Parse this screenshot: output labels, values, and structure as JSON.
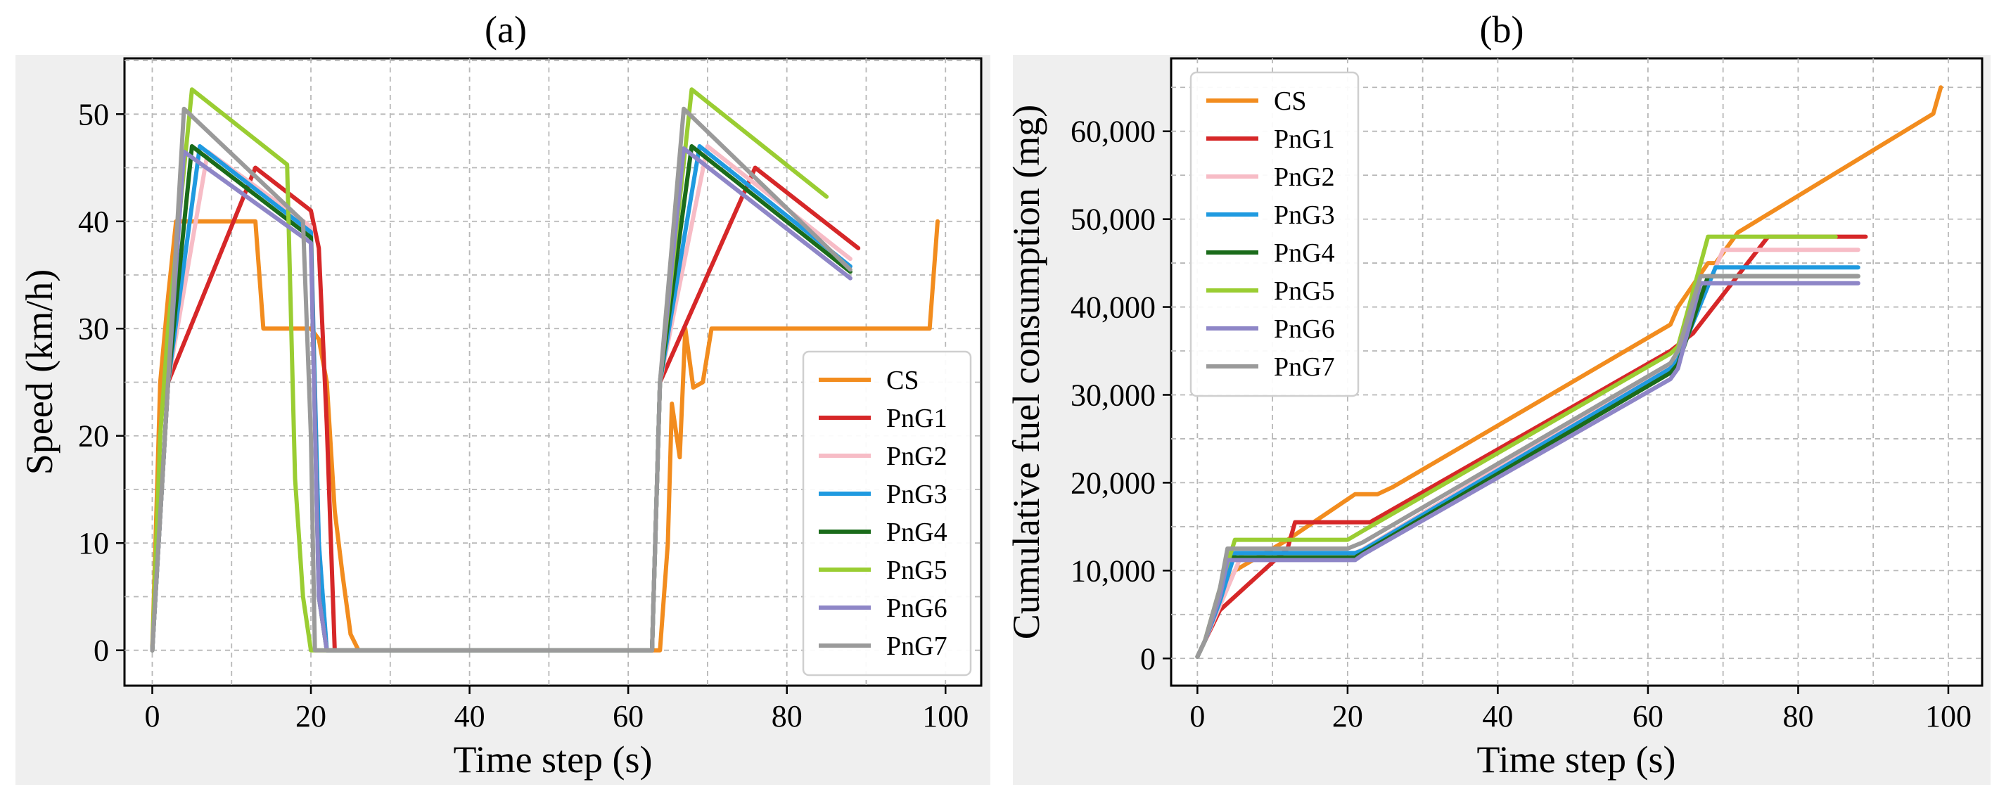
{
  "chart_data": [
    {
      "type": "line",
      "title": "(a)",
      "xlabel": "Time step (s)",
      "ylabel": "Speed (km/h)",
      "xlim": [
        -3.5,
        104.5
      ],
      "ylim": [
        -3.3,
        55.2
      ],
      "xticks": [
        0,
        20,
        40,
        60,
        80,
        100
      ],
      "xtick_labels": [
        "0",
        "20",
        "40",
        "60",
        "80",
        "100"
      ],
      "yticks": [
        0,
        10,
        20,
        30,
        40,
        50
      ],
      "ytick_labels": [
        "0",
        "10",
        "20",
        "30",
        "40",
        "50"
      ],
      "grid": true,
      "legend_position": "lower-right",
      "series": [
        {
          "name": "CS",
          "color": "#f28c1e",
          "points": [
            [
              0,
              0
            ],
            [
              1,
              25
            ],
            [
              2,
              33
            ],
            [
              3,
              40
            ],
            [
              13,
              40
            ],
            [
              14,
              30
            ],
            [
              20,
              30
            ],
            [
              21,
              29
            ],
            [
              22,
              25
            ],
            [
              23,
              13
            ],
            [
              24,
              7
            ],
            [
              25,
              1.5
            ],
            [
              26,
              0
            ],
            [
              64,
              0
            ],
            [
              65,
              10
            ],
            [
              65.5,
              23
            ],
            [
              66.5,
              18
            ],
            [
              67.2,
              30
            ],
            [
              68.2,
              24.5
            ],
            [
              69.4,
              25
            ],
            [
              70.5,
              30
            ],
            [
              98,
              30
            ],
            [
              99,
              40
            ]
          ]
        },
        {
          "name": "PnG1",
          "color": "#d62728",
          "points": [
            [
              0,
              0
            ],
            [
              2,
              25
            ],
            [
              13,
              45
            ],
            [
              20,
              41
            ],
            [
              21,
              37.5
            ],
            [
              22,
              21
            ],
            [
              23,
              0
            ],
            [
              63,
              0
            ],
            [
              64,
              25
            ],
            [
              76,
              45
            ],
            [
              89,
              37.5
            ]
          ]
        },
        {
          "name": "PnG2",
          "color": "#f7bcc6",
          "points": [
            [
              0,
              0
            ],
            [
              2,
              25
            ],
            [
              7,
              46.5
            ],
            [
              20,
              39.5
            ],
            [
              21,
              10
            ],
            [
              22,
              0
            ],
            [
              63,
              0
            ],
            [
              64,
              25
            ],
            [
              70,
              47
            ],
            [
              88,
              36.5
            ]
          ]
        },
        {
          "name": "PnG3",
          "color": "#1f9ae0",
          "points": [
            [
              0,
              0
            ],
            [
              2,
              25
            ],
            [
              6,
              47
            ],
            [
              20,
              39
            ],
            [
              21,
              10
            ],
            [
              22,
              0
            ],
            [
              63,
              0
            ],
            [
              64,
              25
            ],
            [
              69,
              47
            ],
            [
              88,
              35.8
            ]
          ]
        },
        {
          "name": "PnG4",
          "color": "#1a6b1a",
          "points": [
            [
              0,
              0
            ],
            [
              2,
              25
            ],
            [
              5,
              47
            ],
            [
              20,
              38.5
            ],
            [
              21,
              5
            ],
            [
              22,
              0
            ],
            [
              63,
              0
            ],
            [
              64,
              25
            ],
            [
              68,
              47
            ],
            [
              88,
              35.3
            ]
          ]
        },
        {
          "name": "PnG5",
          "color": "#9acd32",
          "points": [
            [
              0,
              0
            ],
            [
              1,
              20
            ],
            [
              2,
              30
            ],
            [
              5,
              52.3
            ],
            [
              17,
              45.3
            ],
            [
              18,
              16
            ],
            [
              19,
              5
            ],
            [
              20,
              0
            ],
            [
              63,
              0
            ],
            [
              64,
              25
            ],
            [
              68,
              52.3
            ],
            [
              85,
              42.3
            ]
          ]
        },
        {
          "name": "PnG6",
          "color": "#8e86c7",
          "points": [
            [
              0,
              0
            ],
            [
              2,
              25
            ],
            [
              4,
              46.5
            ],
            [
              20,
              38
            ],
            [
              21,
              5
            ],
            [
              22,
              0
            ],
            [
              63,
              0
            ],
            [
              64,
              25
            ],
            [
              67,
              46.8
            ],
            [
              88,
              34.7
            ]
          ]
        },
        {
          "name": "PnG7",
          "color": "#9a9a9a",
          "points": [
            [
              0,
              0
            ],
            [
              2,
              25
            ],
            [
              4,
              50.5
            ],
            [
              19,
              40
            ],
            [
              20,
              20
            ],
            [
              20.5,
              0
            ],
            [
              63,
              0
            ],
            [
              64,
              25
            ],
            [
              67,
              50.5
            ],
            [
              88,
              35.5
            ]
          ]
        }
      ]
    },
    {
      "type": "line",
      "title": "(b)",
      "xlabel": "Time step (s)",
      "ylabel": "Cumulative fuel consumption (mg)",
      "xlim": [
        -3.5,
        104.5
      ],
      "ylim": [
        -3100,
        68300
      ],
      "xticks": [
        0,
        20,
        40,
        60,
        80,
        100
      ],
      "xtick_labels": [
        "0",
        "20",
        "40",
        "60",
        "80",
        "100"
      ],
      "yticks": [
        0,
        10000,
        20000,
        30000,
        40000,
        50000,
        60000
      ],
      "ytick_labels": [
        "0",
        "10,000",
        "20,000",
        "30,000",
        "40,000",
        "50,000",
        "60,000"
      ],
      "grid": true,
      "legend_position": "upper-left",
      "series": [
        {
          "name": "CS",
          "color": "#f28c1e",
          "points": [
            [
              0,
              200
            ],
            [
              1,
              2000
            ],
            [
              3,
              6500
            ],
            [
              5,
              10000
            ],
            [
              12,
              13500
            ],
            [
              21,
              18700
            ],
            [
              24,
              18700
            ],
            [
              26,
              19500
            ],
            [
              63,
              38000
            ],
            [
              64,
              40000
            ],
            [
              68,
              45000
            ],
            [
              69,
              45000
            ],
            [
              72,
              48500
            ],
            [
              98,
              62000
            ],
            [
              99,
              65000
            ]
          ]
        },
        {
          "name": "PnG1",
          "color": "#d62728",
          "points": [
            [
              0,
              200
            ],
            [
              1,
              2000
            ],
            [
              3,
              5500
            ],
            [
              12,
              12500
            ],
            [
              13,
              15500
            ],
            [
              23,
              15500
            ],
            [
              63,
              35000
            ],
            [
              66,
              37000
            ],
            [
              76,
              48000
            ],
            [
              89,
              48000
            ]
          ]
        },
        {
          "name": "PnG2",
          "color": "#f7bcc6",
          "points": [
            [
              0,
              200
            ],
            [
              1,
              2000
            ],
            [
              3,
              6000
            ],
            [
              6,
              12000
            ],
            [
              21,
              12000
            ],
            [
              22,
              12400
            ],
            [
              63,
              33500
            ],
            [
              64,
              34500
            ],
            [
              70,
              46500
            ],
            [
              88,
              46500
            ]
          ]
        },
        {
          "name": "PnG3",
          "color": "#1f9ae0",
          "points": [
            [
              0,
              200
            ],
            [
              1,
              2000
            ],
            [
              3,
              6500
            ],
            [
              5,
              12000
            ],
            [
              21,
              12000
            ],
            [
              22,
              12300
            ],
            [
              63,
              33000
            ],
            [
              64,
              34000
            ],
            [
              69,
              44500
            ],
            [
              88,
              44500
            ]
          ]
        },
        {
          "name": "PnG4",
          "color": "#1a6b1a",
          "points": [
            [
              0,
              200
            ],
            [
              1,
              2000
            ],
            [
              3,
              7000
            ],
            [
              4,
              11500
            ],
            [
              21,
              11500
            ],
            [
              22,
              12000
            ],
            [
              63,
              32500
            ],
            [
              64,
              33500
            ],
            [
              68,
              43500
            ],
            [
              88,
              43500
            ]
          ]
        },
        {
          "name": "PnG5",
          "color": "#9acd32",
          "points": [
            [
              0,
              200
            ],
            [
              1,
              2000
            ],
            [
              3,
              8000
            ],
            [
              5,
              13500
            ],
            [
              20,
              13500
            ],
            [
              22,
              14500
            ],
            [
              63,
              34700
            ],
            [
              64,
              35500
            ],
            [
              68,
              48000
            ],
            [
              85,
              48000
            ]
          ]
        },
        {
          "name": "PnG6",
          "color": "#8e86c7",
          "points": [
            [
              0,
              200
            ],
            [
              1,
              2000
            ],
            [
              3,
              7000
            ],
            [
              4,
              11200
            ],
            [
              21,
              11200
            ],
            [
              22,
              11800
            ],
            [
              63,
              31800
            ],
            [
              64,
              33000
            ],
            [
              67,
              42700
            ],
            [
              88,
              42700
            ]
          ]
        },
        {
          "name": "PnG7",
          "color": "#9a9a9a",
          "points": [
            [
              0,
              200
            ],
            [
              1,
              2000
            ],
            [
              3,
              8000
            ],
            [
              4,
              12500
            ],
            [
              20,
              12500
            ],
            [
              22,
              13200
            ],
            [
              63,
              33600
            ],
            [
              64,
              35000
            ],
            [
              67,
              43500
            ],
            [
              88,
              43500
            ]
          ]
        }
      ]
    }
  ]
}
